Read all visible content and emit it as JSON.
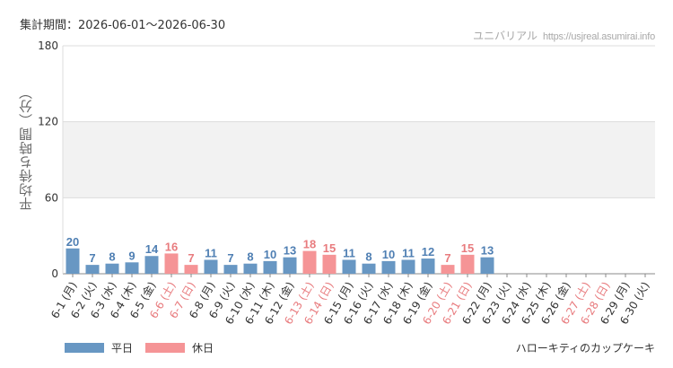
{
  "header": {
    "period": "集計期間：2026-06-01～2026-06-30",
    "site_name": "ユニバリアル",
    "site_url": "https://usjreal.asumirai.info"
  },
  "footer": {
    "product": "ハローキティのカップケーキ"
  },
  "colors": {
    "weekday": "#6897c3",
    "holiday": "#f59496",
    "weekday_text": "#4f7fb3",
    "holiday_text": "#e87b7e"
  },
  "chart_data": {
    "type": "bar",
    "ylabel": "平均待ち時間（分）",
    "ylim": [
      0,
      180
    ],
    "yticks": [
      0,
      60,
      120,
      180
    ],
    "shaded_band": [
      60,
      120
    ],
    "legend": [
      {
        "name": "平日",
        "color": "#6897c3"
      },
      {
        "name": "休日",
        "color": "#f59496"
      }
    ],
    "categories": [
      "6-1 (月)",
      "6-2 (火)",
      "6-3 (水)",
      "6-4 (木)",
      "6-5 (金)",
      "6-6 (土)",
      "6-7 (日)",
      "6-8 (月)",
      "6-9 (火)",
      "6-10 (水)",
      "6-11 (木)",
      "6-12 (金)",
      "6-13 (土)",
      "6-14 (日)",
      "6-15 (月)",
      "6-16 (火)",
      "6-17 (水)",
      "6-18 (木)",
      "6-19 (金)",
      "6-20 (土)",
      "6-21 (日)",
      "6-22 (月)",
      "6-23 (火)",
      "6-24 (水)",
      "6-25 (木)",
      "6-26 (金)",
      "6-27 (土)",
      "6-28 (日)",
      "6-29 (月)",
      "6-30 (火)"
    ],
    "values": [
      20,
      7,
      8,
      9,
      14,
      16,
      7,
      11,
      7,
      8,
      10,
      13,
      18,
      15,
      11,
      8,
      10,
      11,
      12,
      7,
      15,
      13,
      null,
      null,
      null,
      null,
      null,
      null,
      null,
      null
    ],
    "holiday": [
      false,
      false,
      false,
      false,
      false,
      true,
      true,
      false,
      false,
      false,
      false,
      false,
      true,
      true,
      false,
      false,
      false,
      false,
      false,
      true,
      true,
      false,
      false,
      false,
      false,
      false,
      true,
      true,
      false,
      false
    ]
  }
}
